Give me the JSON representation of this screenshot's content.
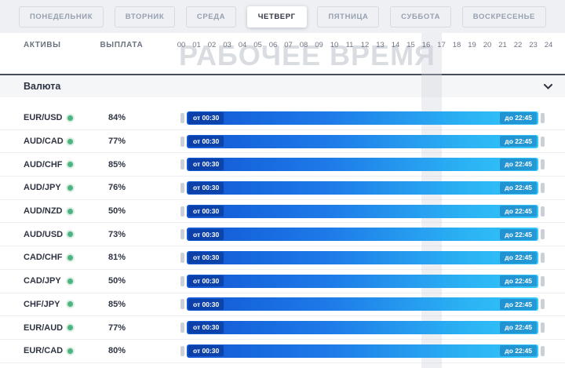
{
  "tabs": [
    {
      "label": "ПОНЕДЕЛЬНИК",
      "active": false
    },
    {
      "label": "ВТОРНИК",
      "active": false
    },
    {
      "label": "СРЕДА",
      "active": false
    },
    {
      "label": "ЧЕТВЕРГ",
      "active": true
    },
    {
      "label": "ПЯТНИЦА",
      "active": false
    },
    {
      "label": "СУББОТА",
      "active": false
    },
    {
      "label": "ВОСКРЕСЕНЬЕ",
      "active": false
    }
  ],
  "columns": {
    "assets": "АКТИВЫ",
    "payout": "ВЫПЛАТА"
  },
  "hours": [
    "00",
    "01",
    "02",
    "03",
    "04",
    "05",
    "06",
    "07",
    "08",
    "09",
    "10",
    "11",
    "12",
    "13",
    "14",
    "15",
    "16",
    "17",
    "18",
    "19",
    "20",
    "21",
    "22",
    "23",
    "24"
  ],
  "watermark": "РАБОЧЕЕ ВРЕМЯ",
  "section": {
    "title": "Валюта"
  },
  "rows": [
    {
      "pair": "EUR/USD",
      "payout": "84%",
      "from": "от 00:30",
      "to": "до 22:45"
    },
    {
      "pair": "AUD/CAD",
      "payout": "77%",
      "from": "от 00:30",
      "to": "до 22:45"
    },
    {
      "pair": "AUD/CHF",
      "payout": "85%",
      "from": "от 00:30",
      "to": "до 22:45"
    },
    {
      "pair": "AUD/JPY",
      "payout": "76%",
      "from": "от 00:30",
      "to": "до 22:45"
    },
    {
      "pair": "AUD/NZD",
      "payout": "50%",
      "from": "от 00:30",
      "to": "до 22:45"
    },
    {
      "pair": "AUD/USD",
      "payout": "73%",
      "from": "от 00:30",
      "to": "до 22:45"
    },
    {
      "pair": "CAD/CHF",
      "payout": "81%",
      "from": "от 00:30",
      "to": "до 22:45"
    },
    {
      "pair": "CAD/JPY",
      "payout": "50%",
      "from": "от 00:30",
      "to": "до 22:45"
    },
    {
      "pair": "CHF/JPY",
      "payout": "85%",
      "from": "от 00:30",
      "to": "до 22:45"
    },
    {
      "pair": "EUR/AUD",
      "payout": "77%",
      "from": "от 00:30",
      "to": "до 22:45"
    },
    {
      "pair": "EUR/CAD",
      "payout": "80%",
      "from": "от 00:30",
      "to": "до 22:45"
    }
  ],
  "colors": {
    "bar-start": "#1257d5",
    "bar-end": "#33c7fa",
    "dot-green": "#4db380"
  }
}
